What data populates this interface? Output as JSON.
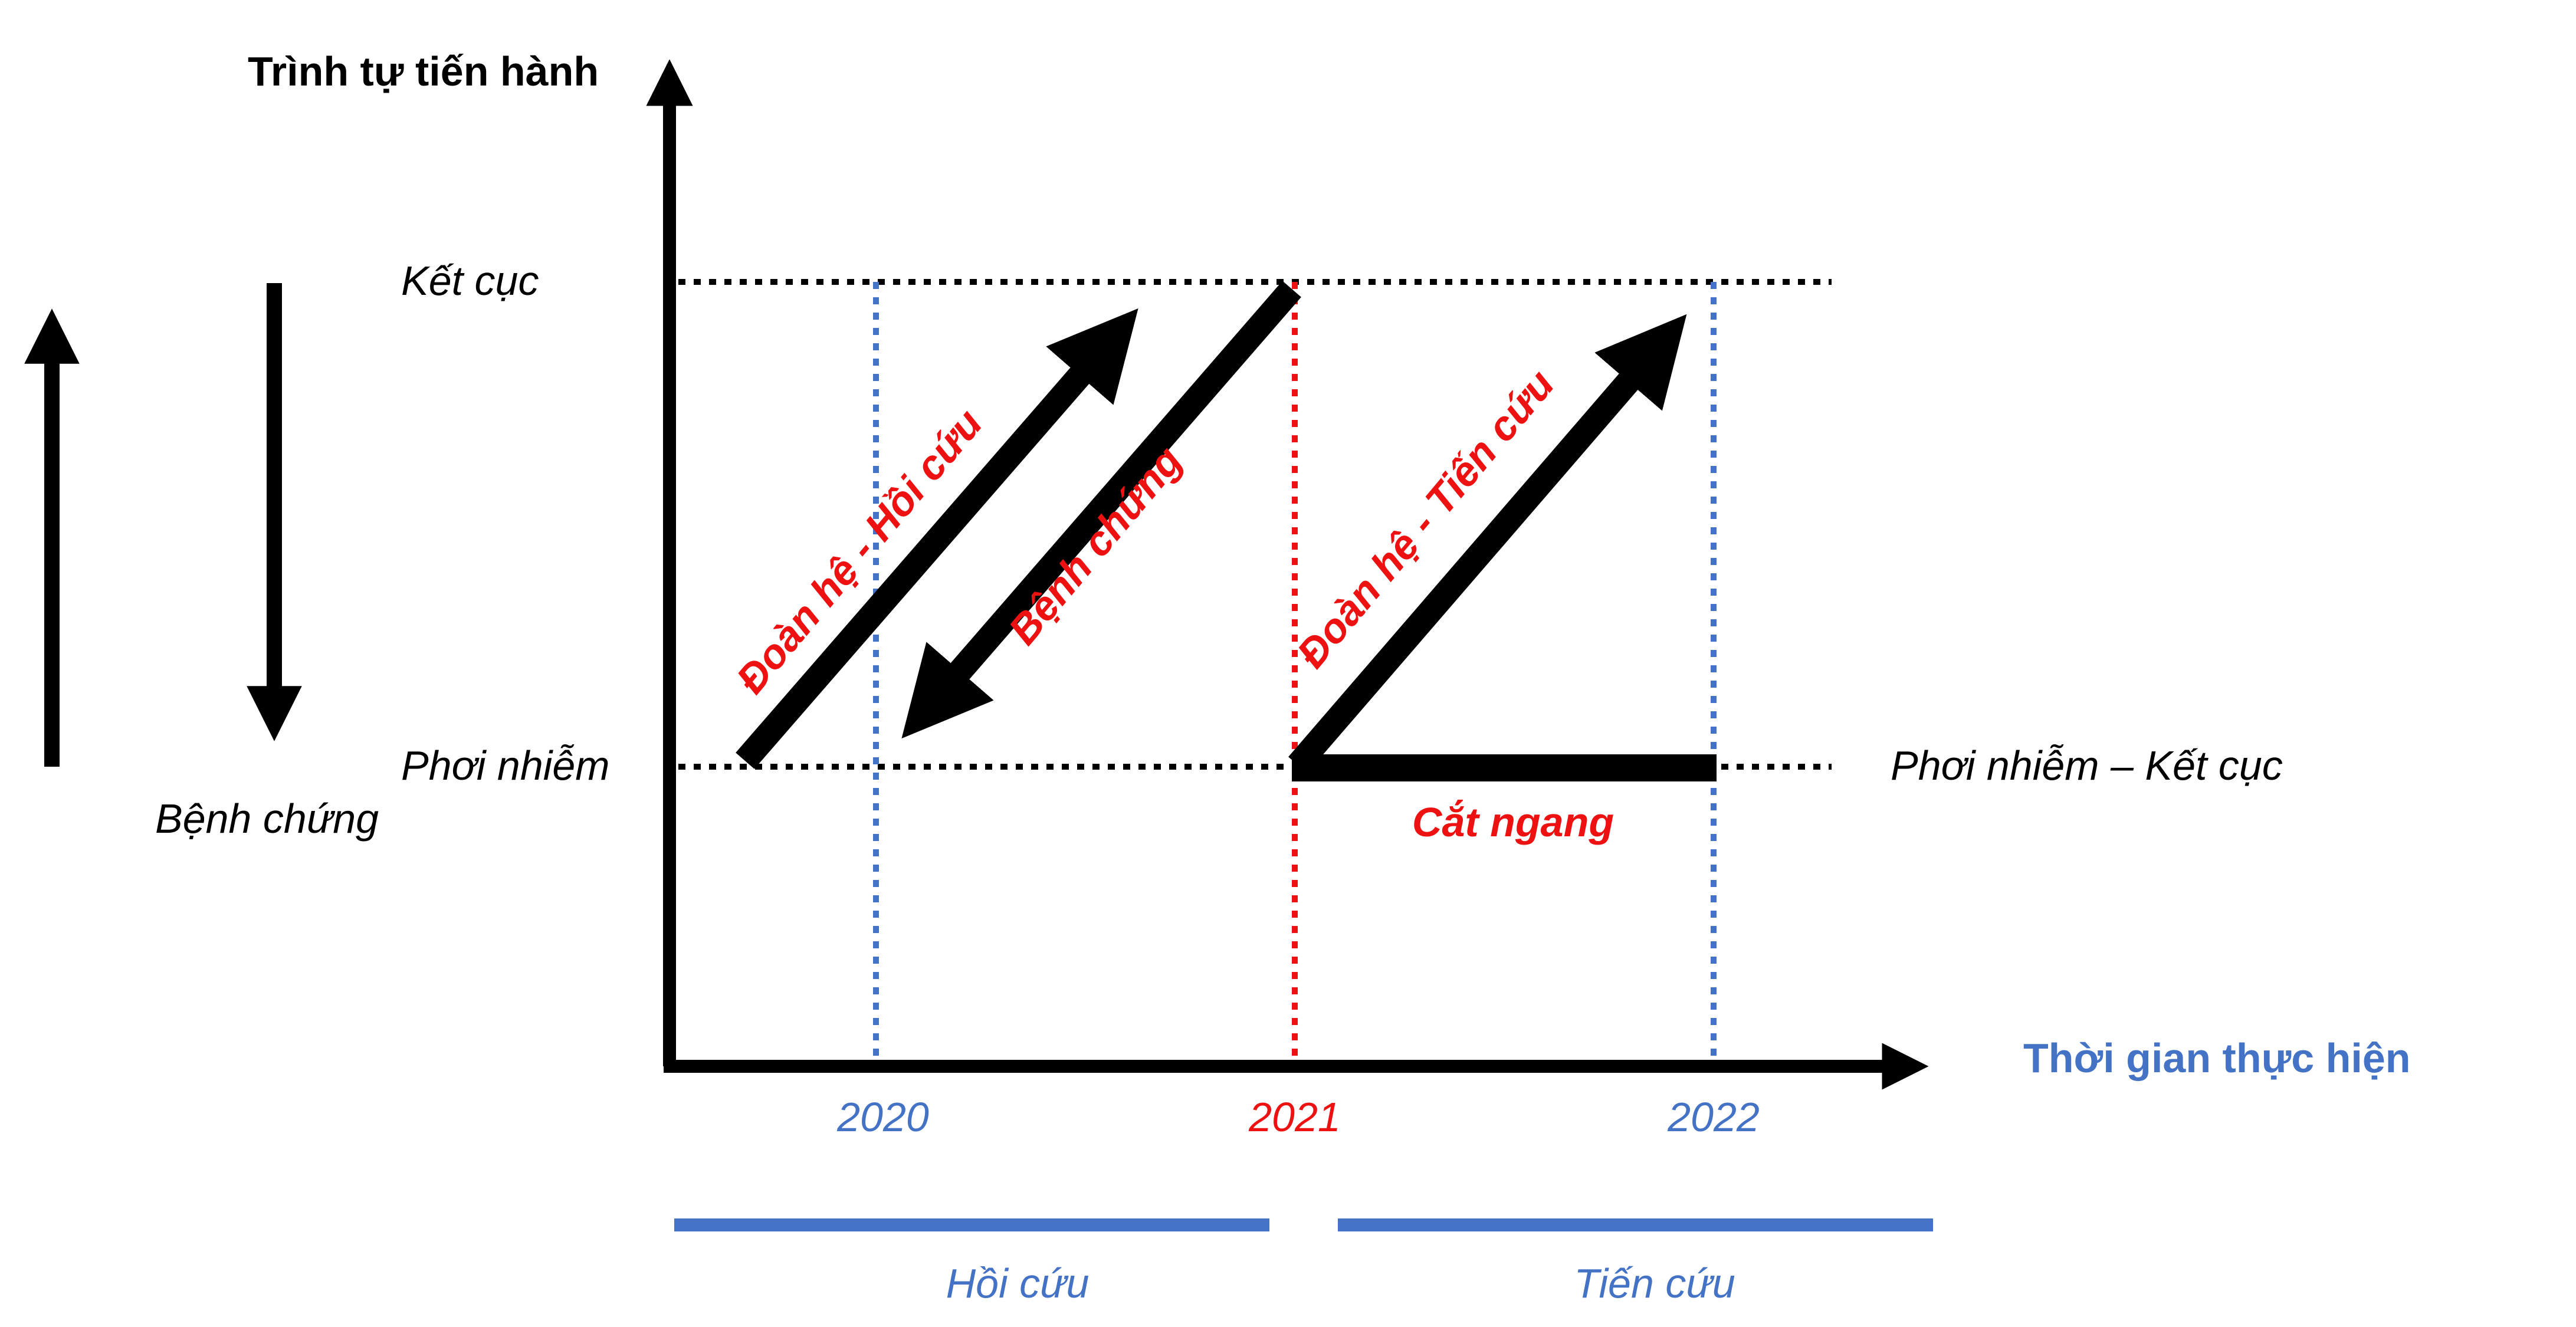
{
  "colors": {
    "black": "#000000",
    "red": "#ee1111",
    "blue": "#4472c4"
  },
  "axes": {
    "y_title": "Trình tự tiến hành",
    "x_title": "Thời gian thực hiện"
  },
  "levels": {
    "outcome": "Kết cục",
    "exposure": "Phơi nhiễm",
    "exposure_outcome": "Phơi nhiễm – Kết cục"
  },
  "legend": {
    "case_control": "Bệnh chứng"
  },
  "studies": {
    "retro_cohort": "Đoàn hệ - Hồi cứu",
    "case_control": "Bệnh chứng",
    "prospective_cohort": "Đoàn hệ - Tiến cứu",
    "cross_sectional": "Cắt ngang"
  },
  "years": [
    "2020",
    "2021",
    "2022"
  ],
  "periods": {
    "retrospective": "Hồi cứu",
    "prospective": "Tiến cứu"
  }
}
